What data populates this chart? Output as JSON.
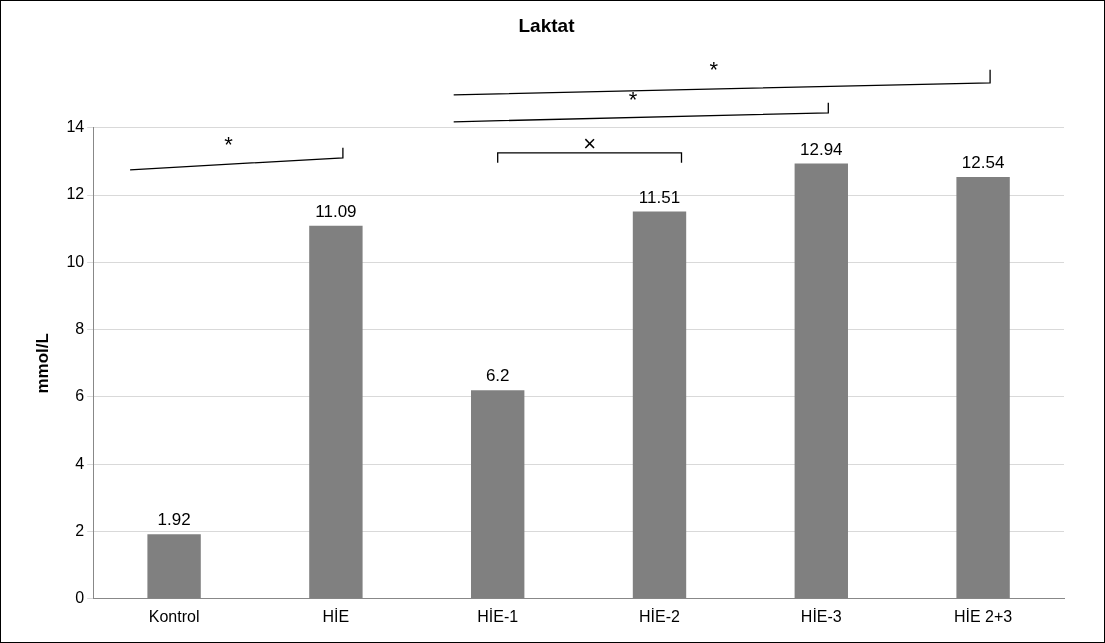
{
  "chart_data": {
    "type": "bar",
    "title": "Laktat",
    "ylabel": "mmol/L",
    "categories": [
      "Kontrol",
      "HİE",
      "HİE-1",
      "HİE-2",
      "HİE-3",
      "HİE 2+3"
    ],
    "values": [
      1.92,
      11.09,
      6.2,
      11.51,
      12.94,
      12.54
    ],
    "color": "#808080",
    "ylim": [
      0,
      14
    ],
    "yticks": [
      0,
      2,
      4,
      6,
      8,
      10,
      12,
      14
    ],
    "grid": "y",
    "data_labels": true,
    "annotations": [
      "*",
      "×",
      "*",
      "*"
    ]
  }
}
